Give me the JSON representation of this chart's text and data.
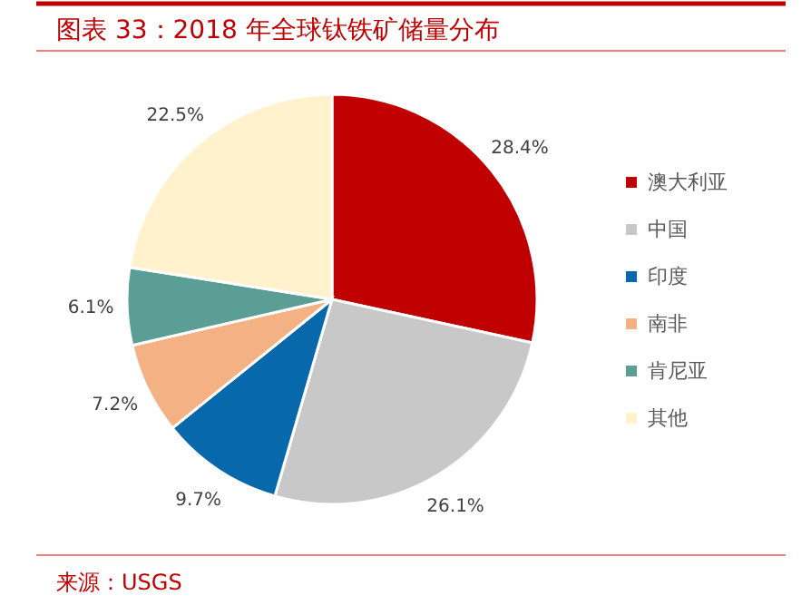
{
  "chart_data": {
    "type": "pie",
    "title": "图表 33：2018 年全球钛铁矿储量分布",
    "categories": [
      "澳大利亚",
      "中国",
      "印度",
      "南非",
      "肯尼亚",
      "其他"
    ],
    "values": [
      28.4,
      26.1,
      9.7,
      7.2,
      6.1,
      22.5
    ],
    "colors": [
      "#c00000",
      "#c8c8c8",
      "#0868ac",
      "#f4b183",
      "#5b9e96",
      "#fff2cc"
    ],
    "value_labels": [
      "28.4%",
      "26.1%",
      "9.7%",
      "7.2%",
      "6.1%",
      "22.5%"
    ],
    "legend": "right",
    "annotations": [
      "来源：USGS"
    ]
  }
}
